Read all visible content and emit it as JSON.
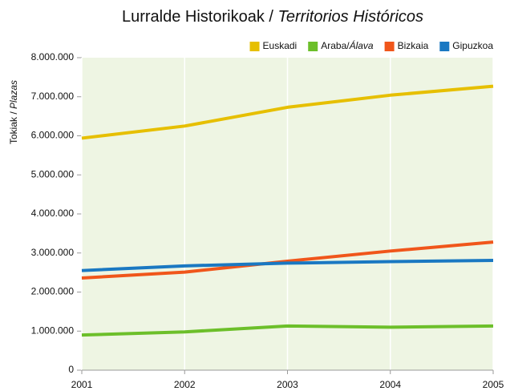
{
  "chart_data": {
    "type": "line",
    "title": "Lurralde Historikoak / Territorios Históricos",
    "y_label": "Tokiak / Plazas",
    "x": [
      2001,
      2002,
      2003,
      2004,
      2005
    ],
    "xlim": [
      2001,
      2005
    ],
    "xticks": [
      2001,
      2002,
      2003,
      2004,
      2005
    ],
    "ylim": [
      0,
      8000000
    ],
    "yticks": [
      0,
      {
        "value": 1000000,
        "label": "1.000.000"
      },
      {
        "value": 2000000,
        "label": "2.000.000"
      },
      {
        "value": 3000000,
        "label": "3.000.000"
      },
      {
        "value": 4000000,
        "label": "4.000.000"
      },
      {
        "value": 5000000,
        "label": "5.000.000"
      },
      {
        "value": 6000000,
        "label": "6.000.000"
      },
      {
        "value": 7000000,
        "label": "7.000.000"
      },
      {
        "value": 8000000,
        "label": "8.000.000"
      }
    ],
    "grid": true,
    "legend": "top-right",
    "series": [
      {
        "name": "Euskadi",
        "color": "#e6bf00",
        "values": [
          5940000,
          6250000,
          6730000,
          7040000,
          7270000
        ]
      },
      {
        "name": "Araba/Álava",
        "color": "#6cbf2a",
        "values": [
          900000,
          980000,
          1130000,
          1100000,
          1130000
        ]
      },
      {
        "name": "Bizkaia",
        "color": "#f0561b",
        "values": [
          2360000,
          2510000,
          2790000,
          3050000,
          3280000
        ]
      },
      {
        "name": "Gipuzkoa",
        "color": "#1a78c2",
        "values": [
          2550000,
          2670000,
          2740000,
          2780000,
          2810000
        ]
      }
    ]
  }
}
